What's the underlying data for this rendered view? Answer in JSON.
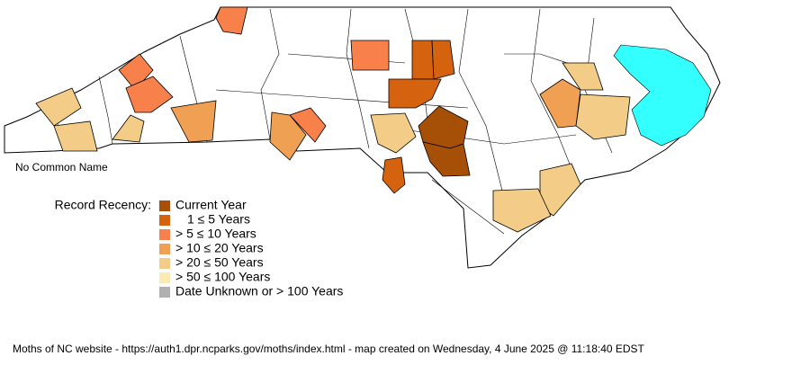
{
  "map_label": "No Common Name",
  "legend": {
    "title": "Record Recency:",
    "items": [
      {
        "label": "Current Year",
        "color": "#a64f06"
      },
      {
        "label": "1 ≤ 5 Years",
        "color": "#d5620f"
      },
      {
        "label": "> 5 ≤ 10 Years",
        "color": "#f7804b"
      },
      {
        "label": "> 10 ≤ 20 Years",
        "color": "#f0a052"
      },
      {
        "label": "> 20 ≤ 50 Years",
        "color": "#f3cc87"
      },
      {
        "label": "> 50 ≤ 100 Years",
        "color": "#f9ebb2"
      },
      {
        "label": "Date Unknown or > 100 Years",
        "color": "#b0b0b0"
      }
    ]
  },
  "footer": "Moths of NC website - https://auth1.dpr.ncparks.gov/moths/index.html - map created on Wednesday, 4 June 2025 @ 11:18:40 EDST"
}
